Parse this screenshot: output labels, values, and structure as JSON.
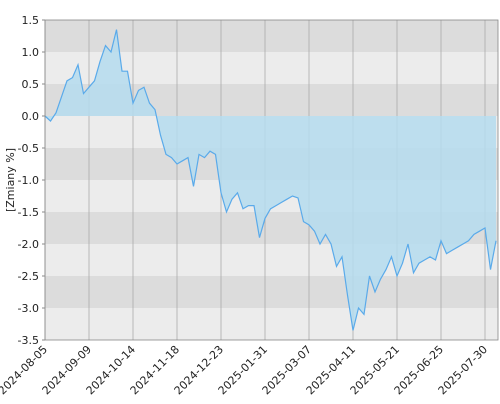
{
  "chart_data": {
    "type": "area",
    "y_label": "[Zmiany %]",
    "categories": [
      "2024-08-05",
      null,
      null,
      null,
      null,
      null,
      null,
      null,
      "2024-09-09",
      null,
      null,
      null,
      null,
      null,
      null,
      null,
      "2024-10-14",
      null,
      null,
      null,
      null,
      null,
      null,
      null,
      "2024-11-18",
      null,
      null,
      null,
      null,
      null,
      null,
      null,
      "2024-12-23",
      null,
      null,
      null,
      null,
      null,
      null,
      null,
      "2025-01-31",
      null,
      null,
      null,
      null,
      null,
      null,
      null,
      "2025-03-07",
      null,
      null,
      null,
      null,
      null,
      null,
      null,
      "2025-04-11",
      null,
      null,
      null,
      null,
      null,
      null,
      null,
      "2025-05-21",
      null,
      null,
      null,
      null,
      null,
      null,
      null,
      "2025-06-25",
      null,
      null,
      null,
      null,
      null,
      null,
      null,
      "2025-07-30",
      null,
      null
    ],
    "values": [
      0,
      -0.08,
      0.05,
      0.3,
      0.55,
      0.6,
      0.8,
      0.35,
      0.45,
      0.55,
      0.85,
      1.1,
      1.0,
      1.35,
      0.7,
      0.7,
      0.2,
      0.4,
      0.45,
      0.2,
      0.1,
      -0.3,
      -0.6,
      -0.65,
      -0.75,
      -0.7,
      -0.65,
      -1.1,
      -0.6,
      -0.65,
      -0.55,
      -0.6,
      -1.2,
      -1.5,
      -1.3,
      -1.2,
      -1.45,
      -1.4,
      -1.4,
      -1.9,
      -1.6,
      -1.45,
      -1.4,
      -1.35,
      -1.3,
      -1.25,
      -1.28,
      -1.65,
      -1.7,
      -1.8,
      -2.0,
      -1.85,
      -2.0,
      -2.35,
      -2.2,
      -2.8,
      -3.35,
      -3.0,
      -3.1,
      -2.5,
      -2.75,
      -2.55,
      -2.4,
      -2.2,
      -2.5,
      -2.3,
      -2.0,
      -2.45,
      -2.3,
      -2.25,
      -2.2,
      -2.25,
      -1.95,
      -2.15,
      -2.1,
      -2.05,
      -2.0,
      -1.95,
      -1.85,
      -1.8,
      -1.75,
      -2.4,
      -1.95
    ],
    "color": "#5aaaea",
    "fill": "#b5dcee",
    "ylim": [
      -3.5,
      1.5
    ],
    "yticks": [
      -3.5,
      {
        "value": -3,
        "label": "-3.0"
      },
      -2.5,
      {
        "value": -2,
        "label": "-2.0"
      },
      -1.5,
      {
        "value": -1,
        "label": "-1.0"
      },
      -0.5,
      {
        "value": 0,
        "label": "0.0"
      },
      0.5,
      {
        "value": 1,
        "label": "1.0"
      },
      1.5
    ],
    "band_colors": [
      "#dcdcdc",
      "#ececec"
    ]
  }
}
